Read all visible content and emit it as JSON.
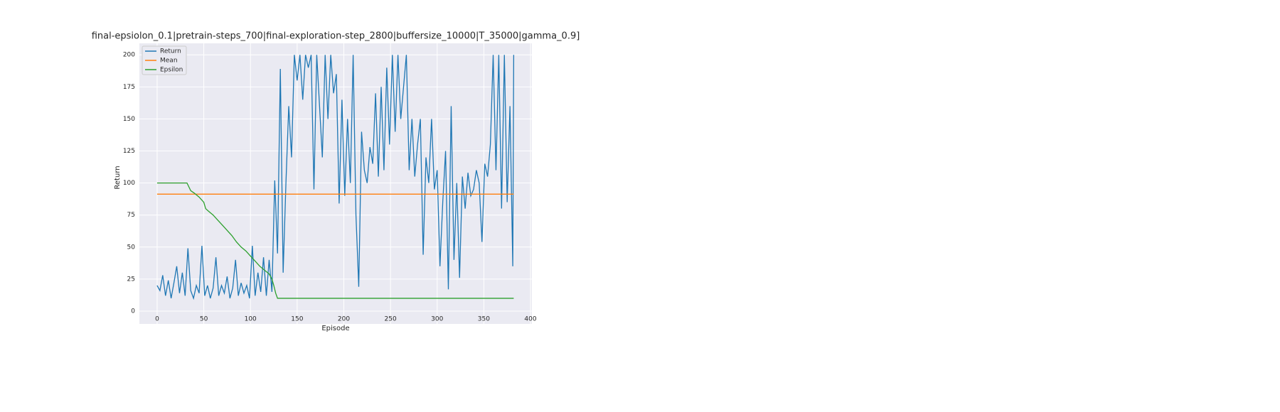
{
  "chart_data": {
    "type": "line",
    "title": "final-epsiolon_0.1|pretrain-steps_700|final-exploration-step_2800|buffersize_10000|T_35000|gamma_0.9]",
    "x_label": "Episode",
    "y_label": "Return",
    "xlim": [
      -19,
      401.5
    ],
    "ylim": [
      -10,
      209
    ],
    "xticks": [
      0,
      50,
      100,
      150,
      200,
      250,
      300,
      350,
      400
    ],
    "yticks": [
      0,
      25,
      50,
      75,
      100,
      125,
      150,
      175,
      200
    ],
    "grid": true,
    "legend": "upper-left",
    "series": [
      {
        "name": "Return",
        "color": "#1f77b4",
        "x": [
          0,
          3,
          6,
          9,
          12,
          15,
          18,
          21,
          24,
          27,
          30,
          33,
          36,
          39,
          42,
          45,
          48,
          51,
          54,
          57,
          60,
          63,
          66,
          69,
          72,
          75,
          78,
          81,
          84,
          87,
          90,
          93,
          96,
          99,
          102,
          105,
          108,
          111,
          114,
          117,
          120,
          123,
          126,
          129,
          132,
          135,
          138,
          141,
          144,
          147,
          150,
          153,
          156,
          159,
          162,
          165,
          168,
          171,
          174,
          177,
          180,
          183,
          186,
          189,
          192,
          195,
          198,
          201,
          204,
          207,
          210,
          213,
          216,
          219,
          222,
          225,
          228,
          231,
          234,
          237,
          240,
          243,
          246,
          249,
          252,
          255,
          258,
          261,
          264,
          267,
          270,
          273,
          276,
          279,
          282,
          285,
          288,
          291,
          294,
          297,
          300,
          303,
          306,
          309,
          312,
          315,
          318,
          321,
          324,
          327,
          330,
          333,
          336,
          339,
          342,
          345,
          348,
          351,
          354,
          357,
          360,
          363,
          366,
          369,
          372,
          375,
          378,
          381,
          382
        ],
        "values": [
          20,
          16,
          28,
          12,
          24,
          10,
          22,
          35,
          14,
          30,
          12,
          49,
          16,
          10,
          20,
          14,
          51,
          12,
          20,
          10,
          18,
          42,
          12,
          20,
          14,
          27,
          10,
          18,
          40,
          12,
          22,
          14,
          20,
          10,
          51,
          12,
          30,
          15,
          42,
          12,
          40,
          15,
          102,
          45,
          189,
          30,
          100,
          160,
          120,
          200,
          180,
          200,
          165,
          200,
          190,
          200,
          95,
          200,
          160,
          120,
          200,
          150,
          200,
          170,
          185,
          84,
          165,
          90,
          150,
          100,
          200,
          75,
          19,
          140,
          110,
          100,
          128,
          115,
          170,
          105,
          175,
          110,
          190,
          130,
          200,
          140,
          200,
          150,
          175,
          200,
          110,
          150,
          105,
          130,
          150,
          44,
          120,
          100,
          150,
          95,
          110,
          35,
          85,
          125,
          17,
          160,
          40,
          100,
          26,
          105,
          80,
          108,
          90,
          95,
          110,
          100,
          54,
          115,
          105,
          130,
          200,
          110,
          200,
          80,
          200,
          85,
          160,
          35,
          200
        ]
      },
      {
        "name": "Mean",
        "color": "#ff7f0e",
        "x": [
          0,
          382
        ],
        "values": [
          91.3,
          91.3
        ]
      },
      {
        "name": "Epsilon",
        "color": "#2ca02c",
        "x": [
          0,
          32,
          34,
          36,
          40,
          45,
          50,
          52,
          55,
          60,
          65,
          70,
          75,
          80,
          85,
          90,
          95,
          100,
          105,
          110,
          115,
          120,
          123,
          125,
          127,
          129,
          382
        ],
        "values": [
          100,
          100,
          97,
          94,
          92,
          89,
          85,
          80,
          78,
          75,
          71,
          67,
          63,
          59,
          54,
          50,
          47,
          43,
          39,
          35,
          32,
          29,
          25,
          20,
          14,
          10,
          10
        ]
      }
    ]
  }
}
